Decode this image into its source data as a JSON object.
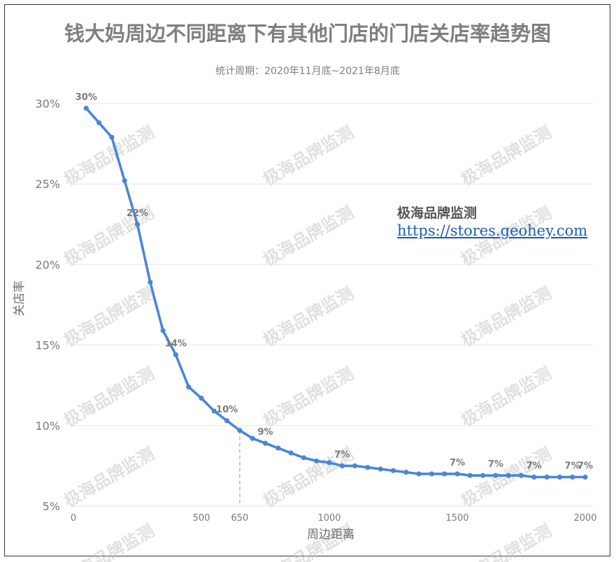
{
  "chart_data": {
    "type": "line",
    "title": "钱大妈周边不同距离下有其他门店的门店关店率趋势图",
    "subtitle": "统计周期：2020年11月底~2021年8月底",
    "xlabel": "周边距离",
    "ylabel": "关店率",
    "xlim": [
      0,
      2000
    ],
    "ylim": [
      5,
      30
    ],
    "x_ticks": [
      "0",
      "500",
      "650",
      "1000",
      "1500",
      "2000"
    ],
    "y_ticks": [
      "5%",
      "10%",
      "15%",
      "20%",
      "25%",
      "30%"
    ],
    "reference_line_x": 650,
    "grid": true,
    "series": [
      {
        "color": "#4a86d6",
        "x": [
          50,
          100,
          150,
          200,
          250,
          300,
          350,
          400,
          450,
          500,
          550,
          600,
          650,
          700,
          750,
          800,
          850,
          900,
          950,
          1000,
          1050,
          1100,
          1150,
          1200,
          1250,
          1300,
          1350,
          1400,
          1450,
          1500,
          1550,
          1600,
          1650,
          1700,
          1750,
          1800,
          1850,
          1900,
          1950,
          2000
        ],
        "y": [
          29.7,
          28.8,
          27.9,
          25.2,
          22.5,
          18.9,
          15.9,
          14.4,
          12.4,
          11.7,
          10.9,
          10.3,
          9.7,
          9.2,
          8.9,
          8.6,
          8.3,
          8.0,
          7.8,
          7.7,
          7.5,
          7.5,
          7.4,
          7.3,
          7.2,
          7.1,
          7.0,
          7.0,
          7.0,
          7.0,
          6.9,
          6.9,
          6.9,
          6.9,
          6.9,
          6.8,
          6.8,
          6.8,
          6.8,
          6.8
        ]
      }
    ],
    "data_labels": [
      {
        "x": 50,
        "text": "30%"
      },
      {
        "x": 250,
        "text": "22%"
      },
      {
        "x": 400,
        "text": "14%"
      },
      {
        "x": 600,
        "text": "10%"
      },
      {
        "x": 750,
        "text": "9%"
      },
      {
        "x": 1050,
        "text": "7%"
      },
      {
        "x": 1500,
        "text": "7%"
      },
      {
        "x": 1650,
        "text": "7%"
      },
      {
        "x": 1800,
        "text": "7%"
      },
      {
        "x": 1950,
        "text": "7%"
      },
      {
        "x": 2000,
        "text": "7%"
      }
    ]
  },
  "brand": {
    "name": "极海品牌监测",
    "url": "https://stores.geohey.com"
  },
  "watermark": {
    "text": "极海品牌监测"
  }
}
